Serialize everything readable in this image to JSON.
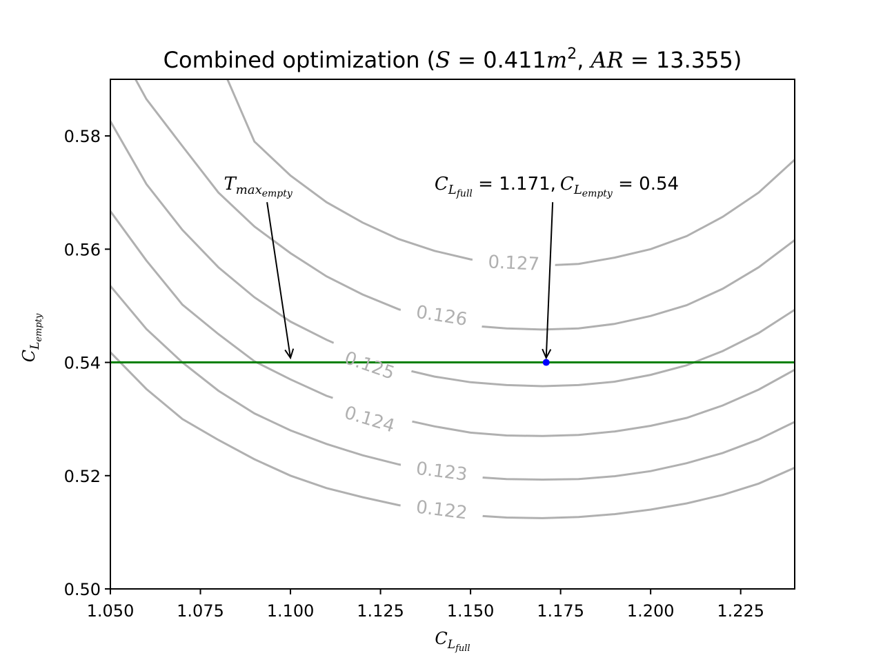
{
  "chart_data": {
    "type": "line",
    "title": {
      "prefix": "Combined optimization (",
      "s_var": "S",
      "s_eq": " = 0.411",
      "s_unit": "m",
      "s_unit_exp": "2",
      "sep": ", ",
      "ar_var": "AR",
      "ar_eq": " = 13.355",
      "suffix": ")"
    },
    "xlabel": {
      "main": "C",
      "sub": "L",
      "subsub": "full"
    },
    "ylabel": {
      "main": "C",
      "sub": "L",
      "subsub": "empty"
    },
    "xlim": [
      1.05,
      1.24
    ],
    "ylim": [
      0.5,
      0.59
    ],
    "xticks": [
      1.05,
      1.075,
      1.1,
      1.125,
      1.15,
      1.175,
      1.2,
      1.225
    ],
    "xtick_labels": [
      "1.050",
      "1.075",
      "1.100",
      "1.125",
      "1.150",
      "1.175",
      "1.200",
      "1.225"
    ],
    "yticks": [
      0.5,
      0.52,
      0.54,
      0.56,
      0.58
    ],
    "ytick_labels": [
      "0.50",
      "0.52",
      "0.54",
      "0.56",
      "0.58"
    ],
    "grid": false,
    "contours": [
      {
        "level": "0.122",
        "x": [
          1.05,
          1.06,
          1.07,
          1.08,
          1.09,
          1.1,
          1.11,
          1.12,
          1.13,
          1.14,
          1.15,
          1.16,
          1.17,
          1.18,
          1.19,
          1.2,
          1.21,
          1.22,
          1.23,
          1.24
        ],
        "y": [
          0.5418,
          0.5353,
          0.53,
          0.5263,
          0.5229,
          0.52,
          0.5178,
          0.5162,
          0.5148,
          0.5138,
          0.513,
          0.5126,
          0.5125,
          0.5127,
          0.5132,
          0.514,
          0.5151,
          0.5166,
          0.5186,
          0.5214
        ],
        "label_x": 1.142,
        "label_y": 0.514
      },
      {
        "level": "0.123",
        "x": [
          1.05,
          1.06,
          1.07,
          1.08,
          1.09,
          1.1,
          1.11,
          1.12,
          1.13,
          1.14,
          1.15,
          1.16,
          1.17,
          1.18,
          1.19,
          1.2,
          1.21,
          1.22,
          1.23,
          1.24
        ],
        "y": [
          0.5535,
          0.5459,
          0.54,
          0.535,
          0.531,
          0.528,
          0.5256,
          0.5236,
          0.522,
          0.5206,
          0.5198,
          0.5194,
          0.5193,
          0.5194,
          0.5199,
          0.5208,
          0.5222,
          0.524,
          0.5264,
          0.5295
        ],
        "label_x": 1.142,
        "label_y": 0.5208
      },
      {
        "level": "0.124",
        "x": [
          1.05,
          1.06,
          1.07,
          1.08,
          1.09,
          1.1,
          1.11,
          1.12,
          1.13,
          1.14,
          1.15,
          1.16,
          1.17,
          1.18,
          1.19,
          1.2,
          1.21,
          1.22,
          1.23,
          1.24
        ],
        "y": [
          0.5667,
          0.558,
          0.5502,
          0.545,
          0.5402,
          0.537,
          0.5341,
          0.532,
          0.5301,
          0.5287,
          0.5276,
          0.5271,
          0.527,
          0.5272,
          0.5278,
          0.5288,
          0.5302,
          0.5324,
          0.5352,
          0.5387
        ],
        "label_x": 1.122,
        "label_y": 0.53
      },
      {
        "level": "0.125",
        "x": [
          1.05,
          1.06,
          1.07,
          1.08,
          1.09,
          1.1,
          1.11,
          1.12,
          1.13,
          1.14,
          1.15,
          1.16,
          1.17,
          1.18,
          1.19,
          1.2,
          1.21,
          1.22,
          1.23,
          1.24
        ],
        "y": [
          0.5826,
          0.5715,
          0.5634,
          0.5568,
          0.5515,
          0.5472,
          0.544,
          0.5412,
          0.539,
          0.5375,
          0.5365,
          0.536,
          0.5358,
          0.536,
          0.5366,
          0.5378,
          0.5395,
          0.542,
          0.5452,
          0.5493
        ],
        "label_x": 1.122,
        "label_y": 0.5395
      },
      {
        "level": "0.126",
        "x": [
          1.057,
          1.06,
          1.07,
          1.08,
          1.09,
          1.1,
          1.11,
          1.12,
          1.13,
          1.14,
          1.15,
          1.16,
          1.17,
          1.18,
          1.19,
          1.2,
          1.21,
          1.22,
          1.23,
          1.24
        ],
        "y": [
          0.59,
          0.5865,
          0.5782,
          0.57,
          0.564,
          0.5593,
          0.5552,
          0.552,
          0.5494,
          0.5475,
          0.5465,
          0.546,
          0.5458,
          0.546,
          0.5468,
          0.5482,
          0.5501,
          0.553,
          0.5568,
          0.5616
        ],
        "label_x": 1.142,
        "label_y": 0.5483
      },
      {
        "level": "0.127",
        "x": [
          1.0825,
          1.09,
          1.1,
          1.11,
          1.12,
          1.13,
          1.14,
          1.15,
          1.16,
          1.17,
          1.18,
          1.19,
          1.2,
          1.21,
          1.22,
          1.23,
          1.24
        ],
        "y": [
          0.59,
          0.579,
          0.573,
          0.5683,
          0.5647,
          0.5618,
          0.5597,
          0.5582,
          0.5574,
          0.5571,
          0.5574,
          0.5585,
          0.56,
          0.5623,
          0.5657,
          0.57,
          0.5758
        ],
        "label_x": 1.162,
        "label_y": 0.5576
      }
    ],
    "hline": {
      "y": 0.54,
      "color": "#008000"
    },
    "point": {
      "x": 1.171,
      "y": 0.54,
      "color": "#0000ff"
    },
    "annotations": [
      {
        "id": "tmax",
        "main": "T",
        "sub": "max",
        "subsub": "empty",
        "text_x": 1.0815,
        "text_y": 0.5705,
        "arrow_from": [
          1.0935,
          0.5683
        ],
        "arrow_to": [
          1.1,
          0.5408
        ]
      },
      {
        "id": "opt",
        "parts": {
          "c1": "C",
          "c1sub": "L",
          "c1subsub": "full",
          "eq1": " = 1.171,",
          "c2": "C",
          "c2sub": "L",
          "c2subsub": "empty",
          "eq2": " = 0.54"
        },
        "text_x": 1.14,
        "text_y": 0.5705,
        "arrow_from": [
          1.1728,
          0.5683
        ],
        "arrow_to": [
          1.171,
          0.5408
        ]
      }
    ],
    "colors": {
      "contour": "#b0b0b0",
      "hline": "#008000",
      "point": "#0000ff",
      "axes": "#000000"
    }
  }
}
